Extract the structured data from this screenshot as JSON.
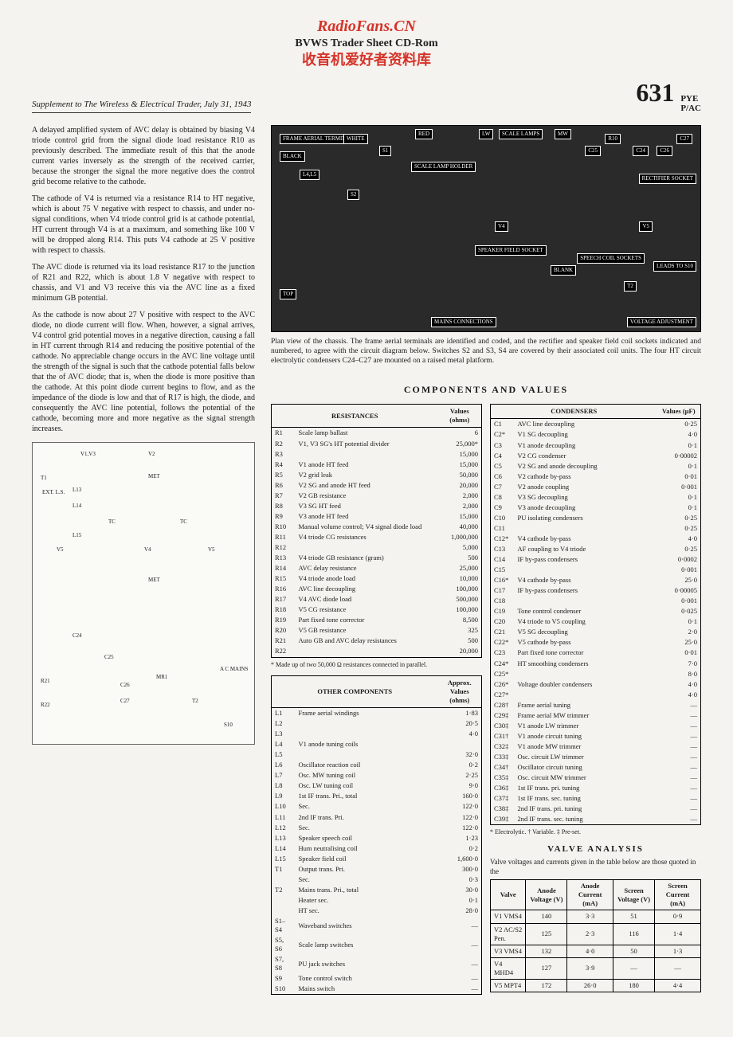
{
  "watermark": {
    "top": "RadioFans.CN",
    "mid": "BVWS Trader Sheet CD-Rom",
    "cn": "收音机爱好者资料库"
  },
  "header": {
    "supplement": "Supplement to The Wireless & Electrical Trader, July 31, 1943",
    "page": "631",
    "brand": "PYE",
    "model": "P/AC"
  },
  "body_text": {
    "p1": "A delayed amplified system of AVC delay is obtained by biasing V4 triode control grid from the signal diode load resistance R10 as previously described. The immediate result of this that the anode current varies inversely as the strength of the received carrier, because the stronger the signal the more negative does the control grid become relative to the cathode.",
    "p2": "The cathode of V4 is returned via a resistance R14 to HT negative, which is about 75 V negative with respect to chassis, and under no-signal conditions, when V4 triode control grid is at cathode potential, HT current through V4 is at a maximum, and something like 100 V will be dropped along R14. This puts V4 cathode at 25 V positive with respect to chassis.",
    "p3": "The AVC diode is returned via its load resistance R17 to the junction of R21 and R22, which is about 1.8 V negative with respect to chassis, and V1 and V3 receive this via the AVC line as a fixed minimum GB potential.",
    "p4": "As the cathode is now about 27 V positive with respect to the AVC diode, no diode current will flow. When, however, a signal arrives, V4 control grid potential moves in a negative direction, causing a fall in HT current through R14 and reducing the positive potential of the cathode. No appreciable change occurs in the AVC line voltage until the strength of the signal is such that the cathode potential falls below that the of AVC diode; that is, when the diode is more positive than the cathode. At this point diode current begins to flow, and as the impedance of the diode is low and that of R17 is high, the diode, and consequently the AVC line potential, follows the potential of the cathode, becoming more and more negative as the signal strength increases."
  },
  "caption": "Plan view of the chassis. The frame aerial terminals are identified and coded, and the rectifier and speaker field coil sockets indicated and numbered, to agree with the circuit diagram below. Switches S2 and S3, S4 are covered by their associated coil units. The four HT circuit electrolytic condensers C24–C27 are mounted on a raised metal platform.",
  "chassis_labels": {
    "frame": "FRAME AERIAL TERMINALS",
    "white": "WHITE",
    "red": "RED",
    "black": "BLACK",
    "scale_lamps": "SCALE LAMPS",
    "lw": "LW",
    "mw": "MW",
    "l4l5": "L4,L5",
    "scale_lamp_holder": "SCALE LAMP HOLDER",
    "s2": "S2",
    "s1": "S1",
    "rect_socket": "RECTIFIER SOCKET",
    "v4": "V4",
    "v5": "V5",
    "speaker_field": "SPEAKER FIELD SOCKET",
    "speech_coil": "SPEECH COIL SOCKETS",
    "blank": "BLANK",
    "leads": "LEADS TO S10",
    "mains_conn": "MAINS CONNECTIONS",
    "volt_adj": "VOLTAGE ADJUSTMENT",
    "top": "TOP",
    "c24": "C24",
    "c25": "C25",
    "c26": "C26",
    "c27": "C27",
    "r10": "R10",
    "t2": "T2"
  },
  "section_title": "COMPONENTS AND VALUES",
  "resistances": {
    "title": "RESISTANCES",
    "val_header": "Values (ohms)",
    "rows": [
      {
        "ref": "R1",
        "desc": "Scale lamp ballast",
        "val": "6"
      },
      {
        "ref": "R2",
        "desc": "V1, V3 SG's HT potential divider",
        "val": "25,000*"
      },
      {
        "ref": "R3",
        "desc": "",
        "val": "15,000"
      },
      {
        "ref": "R4",
        "desc": "V1 anode HT feed",
        "val": "15,000"
      },
      {
        "ref": "R5",
        "desc": "V2 grid leak",
        "val": "50,000"
      },
      {
        "ref": "R6",
        "desc": "V2 SG and anode HT feed",
        "val": "20,000"
      },
      {
        "ref": "R7",
        "desc": "V2 GB resistance",
        "val": "2,000"
      },
      {
        "ref": "R8",
        "desc": "V3 SG HT feed",
        "val": "2,000"
      },
      {
        "ref": "R9",
        "desc": "V3 anode HT feed",
        "val": "15,000"
      },
      {
        "ref": "R10",
        "desc": "Manual volume control; V4 signal diode load",
        "val": "40,000"
      },
      {
        "ref": "R11",
        "desc": "V4 triode CG resistances",
        "val": "1,000,000"
      },
      {
        "ref": "R12",
        "desc": "",
        "val": "5,000"
      },
      {
        "ref": "R13",
        "desc": "V4 triode GB resistance (gram)",
        "val": "500"
      },
      {
        "ref": "R14",
        "desc": "AVC delay resistance",
        "val": "25,000"
      },
      {
        "ref": "R15",
        "desc": "V4 triode anode load",
        "val": "10,000"
      },
      {
        "ref": "R16",
        "desc": "AVC line decoupling",
        "val": "100,000"
      },
      {
        "ref": "R17",
        "desc": "V4 AVC diode load",
        "val": "500,000"
      },
      {
        "ref": "R18",
        "desc": "V5 CG resistance",
        "val": "100,000"
      },
      {
        "ref": "R19",
        "desc": "Part fixed tone corrector",
        "val": "8,500"
      },
      {
        "ref": "R20",
        "desc": "V5 GB resistance",
        "val": "325"
      },
      {
        "ref": "R21",
        "desc": "Auto GB and AVC delay resistances",
        "val": "500"
      },
      {
        "ref": "R22",
        "desc": "",
        "val": "20,000"
      }
    ],
    "footnote": "* Made up of two 50,000 Ω resistances connected in parallel."
  },
  "other": {
    "title": "OTHER COMPONENTS",
    "val_header": "Approx. Values (ohms)",
    "rows": [
      {
        "ref": "L1",
        "desc": "Frame aerial windings",
        "val": "1·83"
      },
      {
        "ref": "L2",
        "desc": "",
        "val": "20·5"
      },
      {
        "ref": "L3",
        "desc": "",
        "val": "4·0"
      },
      {
        "ref": "L4",
        "desc": "V1 anode tuning coils",
        "val": ""
      },
      {
        "ref": "L5",
        "desc": "",
        "val": "32·0"
      },
      {
        "ref": "L6",
        "desc": "Oscillator reaction coil",
        "val": "0·2"
      },
      {
        "ref": "L7",
        "desc": "Osc. MW tuning coil",
        "val": "2·25"
      },
      {
        "ref": "L8",
        "desc": "Osc. LW tuning coil",
        "val": "9·0"
      },
      {
        "ref": "L9",
        "desc": "1st IF trans. Pri., total",
        "val": "160·0"
      },
      {
        "ref": "L10",
        "desc": "Sec.",
        "val": "122·0"
      },
      {
        "ref": "L11",
        "desc": "2nd IF trans. Pri.",
        "val": "122·0"
      },
      {
        "ref": "L12",
        "desc": "Sec.",
        "val": "122·0"
      },
      {
        "ref": "L13",
        "desc": "Speaker speech coil",
        "val": "1·23"
      },
      {
        "ref": "L14",
        "desc": "Hum neutralising coil",
        "val": "0·2"
      },
      {
        "ref": "L15",
        "desc": "Speaker field coil",
        "val": "1,600·0"
      },
      {
        "ref": "T1",
        "desc": "Output trans. Pri.",
        "val": "300·0"
      },
      {
        "ref": "",
        "desc": "Sec.",
        "val": "0·3"
      },
      {
        "ref": "T2",
        "desc": "Mains trans. Pri., total",
        "val": "30·0"
      },
      {
        "ref": "",
        "desc": "Heater sec.",
        "val": "0·1"
      },
      {
        "ref": "",
        "desc": "HT sec.",
        "val": "28·0"
      },
      {
        "ref": "S1–S4",
        "desc": "Waveband switches",
        "val": "—"
      },
      {
        "ref": "S5, S6",
        "desc": "Scale lamp switches",
        "val": "—"
      },
      {
        "ref": "S7, S8",
        "desc": "PU jack switches",
        "val": "—"
      },
      {
        "ref": "S9",
        "desc": "Tone control switch",
        "val": "—"
      },
      {
        "ref": "S10",
        "desc": "Mains switch",
        "val": "—"
      }
    ]
  },
  "condensers": {
    "title": "CONDENSERS",
    "val_header": "Values (µF)",
    "rows": [
      {
        "ref": "C1",
        "desc": "AVC line decoupling",
        "val": "0·25"
      },
      {
        "ref": "C2*",
        "desc": "V1 SG decoupling",
        "val": "4·0"
      },
      {
        "ref": "C3",
        "desc": "V1 anode decoupling",
        "val": "0·1"
      },
      {
        "ref": "C4",
        "desc": "V2 CG condenser",
        "val": "0·00002"
      },
      {
        "ref": "C5",
        "desc": "V2 SG and anode decoupling",
        "val": "0·1"
      },
      {
        "ref": "C6",
        "desc": "V2 cathode by-pass",
        "val": "0·01"
      },
      {
        "ref": "C7",
        "desc": "V2 anode coupling",
        "val": "0·001"
      },
      {
        "ref": "C8",
        "desc": "V3 SG decoupling",
        "val": "0·1"
      },
      {
        "ref": "C9",
        "desc": "V3 anode decoupling",
        "val": "0·1"
      },
      {
        "ref": "C10",
        "desc": "PU isolating condensers",
        "val": "0·25"
      },
      {
        "ref": "C11",
        "desc": "",
        "val": "0·25"
      },
      {
        "ref": "C12*",
        "desc": "V4 cathode by-pass",
        "val": "4·0"
      },
      {
        "ref": "C13",
        "desc": "AF coupling to V4 triode",
        "val": "0·25"
      },
      {
        "ref": "C14",
        "desc": "IF by-pass condensers",
        "val": "0·0002"
      },
      {
        "ref": "C15",
        "desc": "",
        "val": "0·001"
      },
      {
        "ref": "C16*",
        "desc": "V4 cathode by-pass",
        "val": "25·0"
      },
      {
        "ref": "C17",
        "desc": "IF by-pass condensers",
        "val": "0·00005"
      },
      {
        "ref": "C18",
        "desc": "",
        "val": "0·001"
      },
      {
        "ref": "C19",
        "desc": "Tone control condenser",
        "val": "0·025"
      },
      {
        "ref": "C20",
        "desc": "V4 triode to V5 coupling",
        "val": "0·1"
      },
      {
        "ref": "C21",
        "desc": "V5 SG decoupling",
        "val": "2·0"
      },
      {
        "ref": "C22*",
        "desc": "V5 cathode by-pass",
        "val": "25·0"
      },
      {
        "ref": "C23",
        "desc": "Part fixed tone corrector",
        "val": "0·01"
      },
      {
        "ref": "C24*",
        "desc": "HT smoothing condensers",
        "val": "7·0"
      },
      {
        "ref": "C25*",
        "desc": "",
        "val": "8·0"
      },
      {
        "ref": "C26*",
        "desc": "Voltage doubler condensers",
        "val": "4·0"
      },
      {
        "ref": "C27*",
        "desc": "",
        "val": "4·0"
      },
      {
        "ref": "C28†",
        "desc": "Frame aerial tuning",
        "val": "—"
      },
      {
        "ref": "C29‡",
        "desc": "Frame aerial MW trimmer",
        "val": "—"
      },
      {
        "ref": "C30‡",
        "desc": "V1 anode LW trimmer",
        "val": "—"
      },
      {
        "ref": "C31†",
        "desc": "V1 anode circuit tuning",
        "val": "—"
      },
      {
        "ref": "C32‡",
        "desc": "V1 anode MW trimmer",
        "val": "—"
      },
      {
        "ref": "C33‡",
        "desc": "Osc. circuit LW trimmer",
        "val": "—"
      },
      {
        "ref": "C34†",
        "desc": "Oscillator circuit tuning",
        "val": "—"
      },
      {
        "ref": "C35‡",
        "desc": "Osc. circuit MW trimmer",
        "val": "—"
      },
      {
        "ref": "C36‡",
        "desc": "1st IF trans. pri. tuning",
        "val": "—"
      },
      {
        "ref": "C37‡",
        "desc": "1st IF trans. sec. tuning",
        "val": "—"
      },
      {
        "ref": "C38‡",
        "desc": "2nd IF trans. pri. tuning",
        "val": "—"
      },
      {
        "ref": "C39‡",
        "desc": "2nd IF trans. sec. tuning",
        "val": "—"
      }
    ],
    "legend": "* Electrolytic.    † Variable.    ‡ Pre-set."
  },
  "valve": {
    "title": "VALVE ANALYSIS",
    "intro": "Valve voltages and currents given in the table below are those quoted in the",
    "headers": [
      "Valve",
      "Anode Voltage (V)",
      "Anode Current (mA)",
      "Screen Voltage (V)",
      "Screen Current (mA)"
    ],
    "rows": [
      {
        "v": "V1 VMS4",
        "av": "140",
        "ac": "3·3",
        "sv": "51",
        "sc": "0·9"
      },
      {
        "v": "V2 AC/S2 Pen.",
        "av": "125",
        "ac": "2·3",
        "sv": "116",
        "sc": "1·4"
      },
      {
        "v": "V3 VMS4",
        "av": "132",
        "ac": "4·0",
        "sv": "50",
        "sc": "1·3"
      },
      {
        "v": "V4 MHD4",
        "av": "127",
        "ac": "3·9",
        "sv": "—",
        "sc": "—"
      },
      {
        "v": "V5 MPT4",
        "av": "172",
        "ac": "26·0",
        "sv": "180",
        "sc": "4·4"
      }
    ]
  },
  "circuit_labels": {
    "v1v3": "V1,V3",
    "v2": "V2",
    "v4": "V4",
    "v5l": "V5",
    "v5r": "V5",
    "l13": "L13",
    "l14": "L14",
    "l15": "L15",
    "t1": "T1",
    "ext_ls": "EXT. L.S.",
    "met": "MET",
    "c24": "C24",
    "c25": "C25",
    "c26": "C26",
    "c27": "C27",
    "r21": "R21",
    "r22": "R22",
    "mr1": "MR1",
    "t2": "T2",
    "s10": "S10",
    "ac_mains": "A C MAINS",
    "tc": "TC"
  }
}
